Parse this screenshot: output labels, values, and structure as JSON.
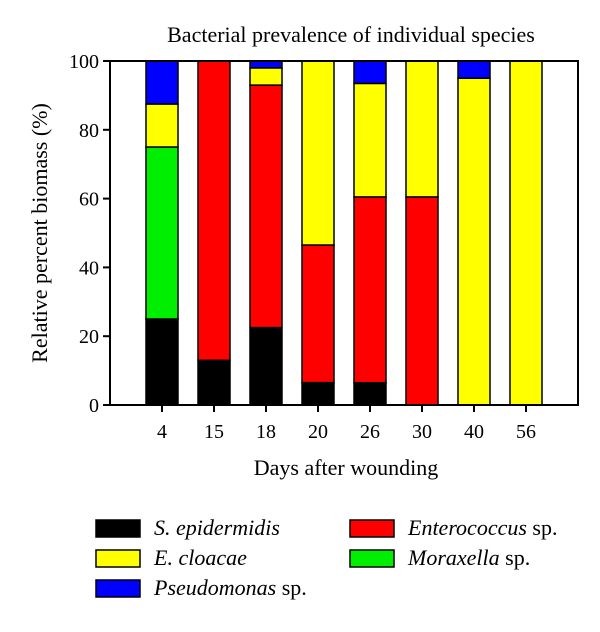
{
  "chart_data": {
    "type": "bar",
    "stacked": true,
    "title": "Bacterial prevalence of individual species",
    "xlabel": "Days after wounding",
    "ylabel": "Relative percent biomass (%)",
    "ylim": [
      0,
      100
    ],
    "yticks": [
      "0",
      "20",
      "40",
      "60",
      "80",
      "100"
    ],
    "grid": false,
    "legend_position": "bottom",
    "categories": [
      "4",
      "15",
      "18",
      "20",
      "26",
      "30",
      "40",
      "56"
    ],
    "series": [
      {
        "name": "S. epidermidis",
        "name_italic": "S. epidermidis",
        "name_suffix": "",
        "color": "#000000",
        "values": [
          25,
          13,
          22.5,
          6.5,
          6.5,
          0,
          0,
          0
        ]
      },
      {
        "name": "Moraxella sp.",
        "name_italic": "Moraxella",
        "name_suffix": " sp.",
        "color": "#00ee00",
        "values": [
          50,
          0,
          0,
          0,
          0,
          0,
          0,
          0
        ]
      },
      {
        "name": "Enterococcus sp.",
        "name_italic": "Enterococcus",
        "name_suffix": " sp.",
        "color": "#ff0000",
        "values": [
          0,
          87,
          70.5,
          40,
          54,
          60.5,
          0,
          0
        ]
      },
      {
        "name": "E. cloacae",
        "name_italic": "E. cloacae",
        "name_suffix": "",
        "color": "#ffff00",
        "values": [
          12.5,
          0,
          5,
          53.5,
          33,
          39.5,
          95,
          100
        ]
      },
      {
        "name": "Pseudomonas sp.",
        "name_italic": "Pseudomonas",
        "name_suffix": " sp.",
        "color": "#0000ff",
        "values": [
          12.5,
          0,
          2,
          0,
          6.5,
          0,
          5,
          0
        ]
      }
    ],
    "legend_order": [
      0,
      2,
      3,
      1,
      4
    ]
  }
}
